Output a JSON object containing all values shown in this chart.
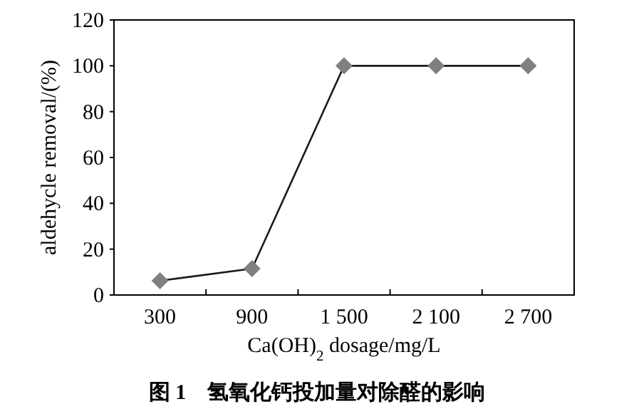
{
  "chart_data": {
    "type": "line",
    "title": "图 1　氢氧化钙投加量对除醛的影响",
    "xlabel": "Ca(OH)$_{2}$ dosage/mg/L",
    "ylabel": "aldehycle removal/(%)",
    "categories": [
      "300",
      "900",
      "1 500",
      "2 100",
      "2 700"
    ],
    "values": [
      6.2,
      11.5,
      100,
      100,
      100
    ],
    "color": "#1a1a1a",
    "marker": "diamond",
    "line_style": "solid",
    "ylim": [
      0,
      120
    ],
    "yticks": [
      0,
      20,
      40,
      60,
      80,
      100,
      120
    ]
  }
}
